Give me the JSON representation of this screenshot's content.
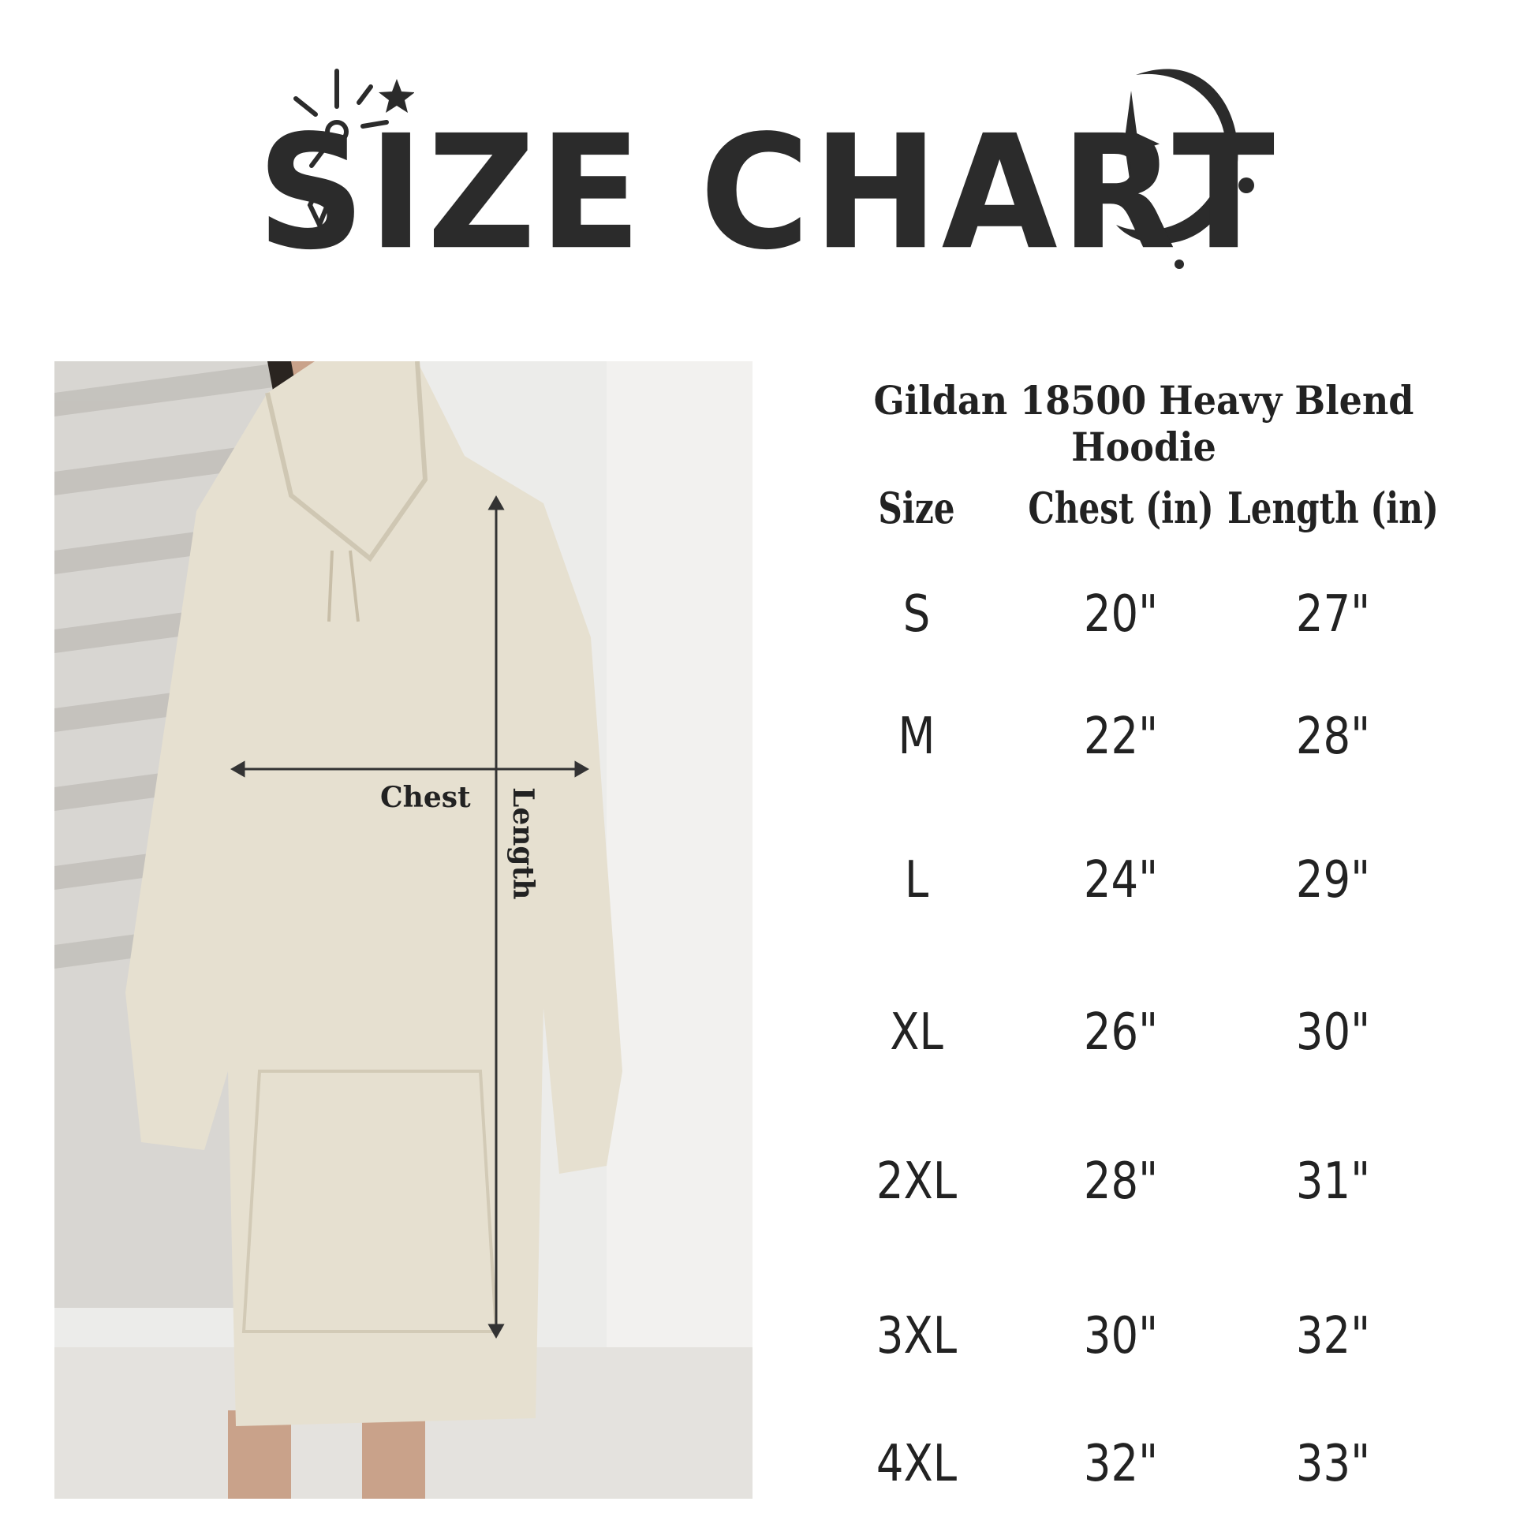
{
  "title": "SIZE CHART",
  "table": {
    "title": "Gildan 18500 Heavy Blend Hoodie",
    "headers": [
      "Size",
      "Chest (in)",
      "Length (in)"
    ],
    "rows": [
      [
        "S",
        "20\"",
        "27\""
      ],
      [
        "M",
        "22\"",
        "28\""
      ],
      [
        "L",
        "24\"",
        "29\""
      ],
      [
        "XL",
        "26\"",
        "30\""
      ],
      [
        "2XL",
        "28\"",
        "31\""
      ],
      [
        "3XL",
        "30\"",
        "32\""
      ],
      [
        "4XL",
        "32\"",
        "33\""
      ]
    ]
  },
  "photo": {
    "chest_label": "Chest",
    "length_label": "Length",
    "garment_color": "#e6e0d0"
  },
  "icons": [
    "sun-icon",
    "star-icon",
    "diamond-icon",
    "crescent-moon-icon",
    "sparkle-star-icon"
  ]
}
